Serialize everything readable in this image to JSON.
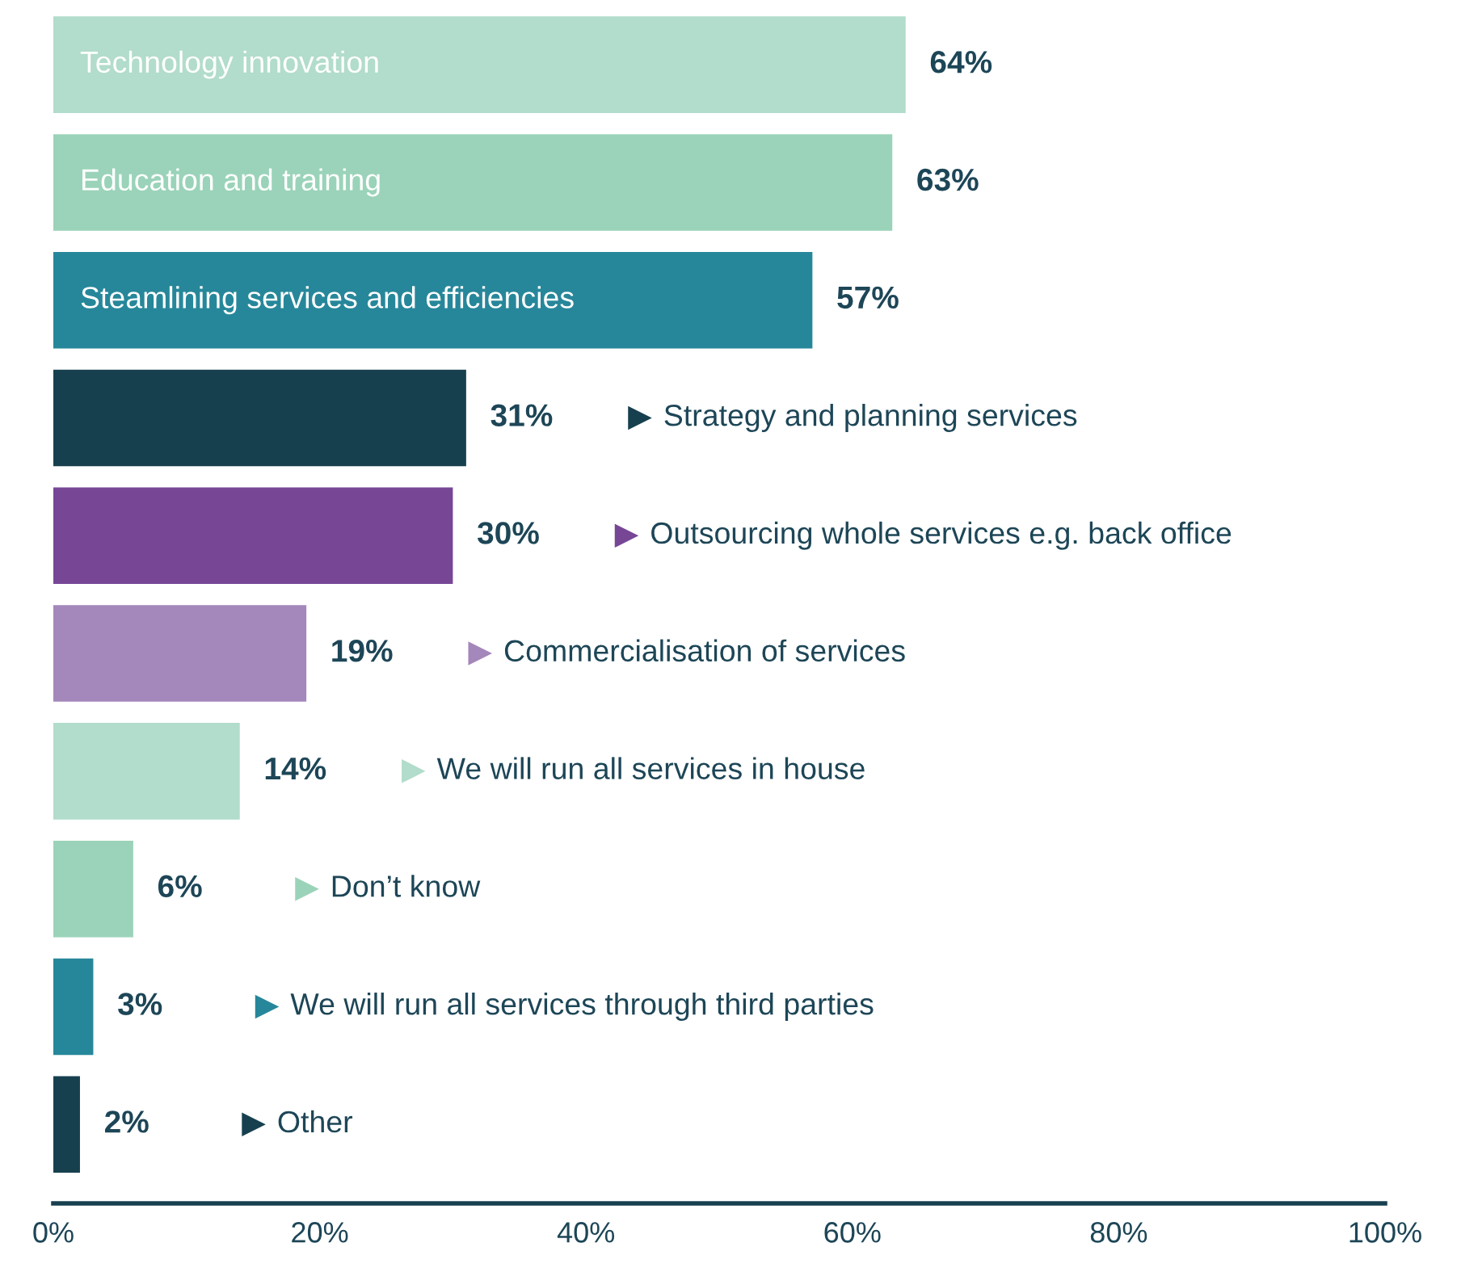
{
  "chart_data": {
    "type": "bar",
    "orientation": "horizontal",
    "categories": [
      "Technology innovation",
      "Education and training",
      "Steamlining services and efficiencies",
      "Strategy and planning services",
      "Outsourcing whole services e.g. back office",
      "Commercialisation of services",
      "We will run all services in house",
      "Don’t know",
      "We will run all services through third parties",
      "Other"
    ],
    "values": [
      64,
      63,
      57,
      31,
      30,
      19,
      14,
      6,
      3,
      2
    ],
    "colors": [
      "#b2dccb",
      "#9ad3b9",
      "#27879a",
      "#17404f",
      "#774796",
      "#a487bb",
      "#b2dccb",
      "#9ad3b9",
      "#27879a",
      "#17404f"
    ],
    "value_labels": [
      "64%",
      "63%",
      "57%",
      "31%",
      "30%",
      "19%",
      "14%",
      "6%",
      "3%",
      "2%"
    ],
    "xlim": [
      0,
      100
    ],
    "xticks": [
      {
        "value": 0,
        "label": "0%"
      },
      {
        "value": 20,
        "label": "20%"
      },
      {
        "value": 40,
        "label": "40%"
      },
      {
        "value": 60,
        "label": "60%"
      },
      {
        "value": 80,
        "label": "80%"
      },
      {
        "value": 100,
        "label": "100%"
      }
    ],
    "grid": false,
    "legend": false
  }
}
